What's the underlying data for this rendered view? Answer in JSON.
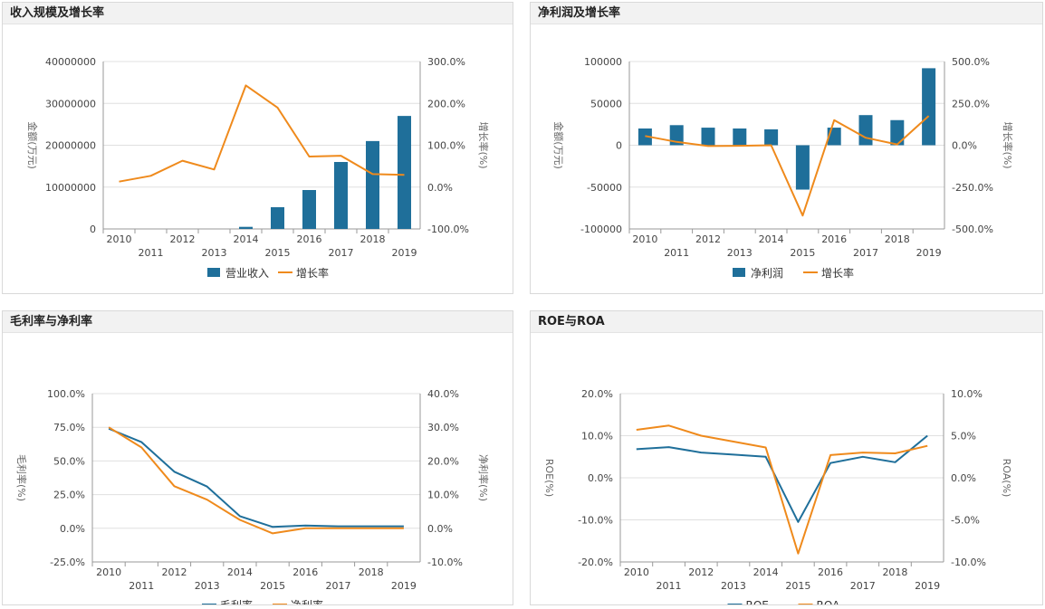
{
  "colors": {
    "bar": "#1f6f9a",
    "primary_line": "#1f6f9a",
    "growth_line": "#ef8a1c"
  },
  "chart_data": [
    {
      "id": "revenue",
      "title": "收入规模及增长率",
      "type": "bar+line",
      "categories": [
        "2010",
        "2011",
        "2012",
        "2013",
        "2014",
        "2015",
        "2016",
        "2017",
        "2018",
        "2019"
      ],
      "series": [
        {
          "name": "营业收入",
          "type": "bar",
          "axis": "left",
          "values": [
            0,
            0,
            0,
            0,
            500000,
            5200000,
            9300000,
            16000000,
            21000000,
            27000000
          ]
        },
        {
          "name": "增长率",
          "type": "line",
          "axis": "right",
          "values": [
            13,
            27,
            63,
            42,
            243,
            190,
            73,
            75,
            31,
            29
          ]
        }
      ],
      "ylabel_left": "金额(万元)",
      "ylabel_right": "增长率(%)",
      "ylim_left": [
        0,
        40000000
      ],
      "ylim_right": [
        -100,
        300
      ],
      "yticks_left": [
        "40000000",
        "30000000",
        "20000000",
        "10000000",
        "0"
      ],
      "yticks_right": [
        "300.0%",
        "200.0%",
        "100.0%",
        "0.0%",
        "-100.0%"
      ],
      "legend": "bottom"
    },
    {
      "id": "profit",
      "title": "净利润及增长率",
      "type": "bar+line",
      "categories": [
        "2010",
        "2011",
        "2012",
        "2013",
        "2014",
        "2015",
        "2016",
        "2017",
        "2018",
        "2019"
      ],
      "series": [
        {
          "name": "净利润",
          "type": "bar",
          "axis": "left",
          "values": [
            20000,
            24000,
            21000,
            20000,
            19000,
            -53000,
            21000,
            36000,
            30000,
            92000
          ]
        },
        {
          "name": "增长率",
          "type": "line",
          "axis": "right",
          "values": [
            55,
            20,
            -5,
            -3,
            0,
            -420,
            150,
            45,
            5,
            175
          ]
        }
      ],
      "ylabel_left": "金额(万元)",
      "ylabel_right": "增长率(%)",
      "ylim_left": [
        -100000,
        100000
      ],
      "ylim_right": [
        -500,
        500
      ],
      "yticks_left": [
        "100000",
        "50000",
        "0",
        "-50000",
        "-100000"
      ],
      "yticks_right": [
        "500.0%",
        "250.0%",
        "0.0%",
        "-250.0%",
        "-500.0%"
      ],
      "legend": "bottom"
    },
    {
      "id": "margin",
      "title": "毛利率与净利率",
      "type": "line",
      "categories": [
        "2010",
        "2011",
        "2012",
        "2013",
        "2014",
        "2015",
        "2016",
        "2017",
        "2018",
        "2019"
      ],
      "series": [
        {
          "name": "毛利率",
          "type": "line",
          "axis": "left",
          "values": [
            74,
            64,
            42,
            31,
            9,
            1,
            2,
            1.5,
            1.5,
            1.5
          ]
        },
        {
          "name": "净利率",
          "type": "line",
          "axis": "right",
          "values": [
            30,
            24,
            12.5,
            8.5,
            2.5,
            -1.5,
            0,
            0,
            0,
            0
          ]
        }
      ],
      "ylabel_left": "毛利率(%)",
      "ylabel_right": "净利率(%)",
      "ylim_left": [
        -25,
        100
      ],
      "ylim_right": [
        -10,
        40
      ],
      "yticks_left": [
        "100.0%",
        "75.0%",
        "50.0%",
        "25.0%",
        "0.0%",
        "-25.0%"
      ],
      "yticks_right": [
        "40.0%",
        "30.0%",
        "20.0%",
        "10.0%",
        "0.0%",
        "-10.0%"
      ],
      "legend": "bottom"
    },
    {
      "id": "roe",
      "title": "ROE与ROA",
      "type": "line",
      "categories": [
        "2010",
        "2011",
        "2012",
        "2013",
        "2014",
        "2015",
        "2016",
        "2017",
        "2018",
        "2019"
      ],
      "series": [
        {
          "name": "ROE",
          "type": "line",
          "axis": "left",
          "values": [
            6.8,
            7.3,
            6,
            5.5,
            5,
            -10.5,
            3.5,
            5,
            3.7,
            10
          ]
        },
        {
          "name": "ROA",
          "type": "line",
          "axis": "right",
          "values": [
            5.7,
            6.2,
            5,
            4.3,
            3.6,
            -9,
            2.7,
            3,
            2.9,
            3.8
          ]
        }
      ],
      "ylabel_left": "ROE(%)",
      "ylabel_right": "ROA(%)",
      "ylim_left": [
        -20,
        20
      ],
      "ylim_right": [
        -10,
        10
      ],
      "yticks_left": [
        "20.0%",
        "10.0%",
        "0.0%",
        "-10.0%",
        "-20.0%"
      ],
      "yticks_right": [
        "10.0%",
        "5.0%",
        "0.0%",
        "-5.0%",
        "-10.0%"
      ],
      "legend": "bottom"
    }
  ]
}
